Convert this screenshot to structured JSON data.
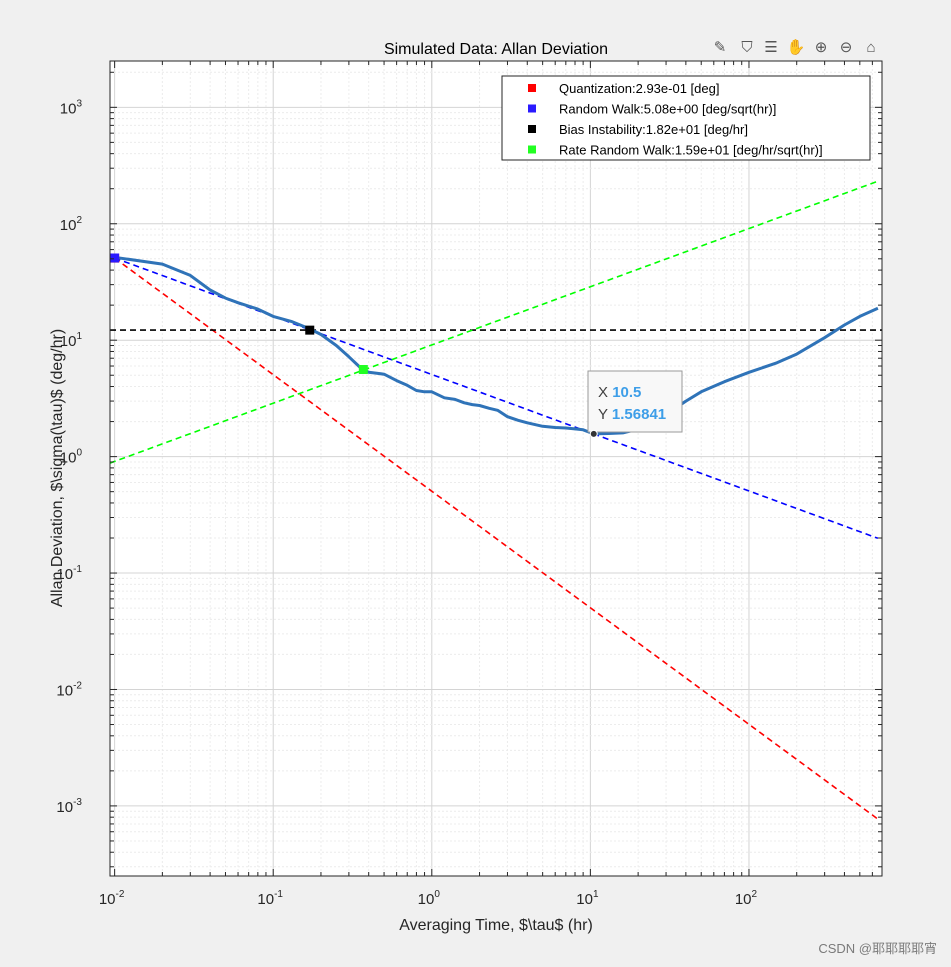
{
  "toolbar": {
    "icons": [
      "brush-icon",
      "data-tips-icon",
      "export-icon",
      "pan-icon",
      "zoom-in-icon",
      "zoom-out-icon",
      "home-icon"
    ]
  },
  "watermark": "CSDN @耶耶耶耶宵",
  "chart_data": {
    "type": "line",
    "title": "Simulated Data: Allan Deviation",
    "xlabel": "Averaging Time, $\\tau$ (hr)",
    "ylabel": "Allan Deviation, $\\sigma(\\tau)$ (deg/hr)",
    "xscale": "log",
    "yscale": "log",
    "xlim": [
      0.00935,
      690
    ],
    "ylim": [
      0.00025,
      2500
    ],
    "grid": true,
    "legend_position": "top-right",
    "x_ticks": [
      {
        "base": "10",
        "exp": "-2",
        "value": 0.01
      },
      {
        "base": "10",
        "exp": "-1",
        "value": 0.1
      },
      {
        "base": "10",
        "exp": "0",
        "value": 1
      },
      {
        "base": "10",
        "exp": "1",
        "value": 10
      },
      {
        "base": "10",
        "exp": "2",
        "value": 100
      }
    ],
    "y_ticks": [
      {
        "base": "10",
        "exp": "-3",
        "value": 0.001
      },
      {
        "base": "10",
        "exp": "-2",
        "value": 0.01
      },
      {
        "base": "10",
        "exp": "-1",
        "value": 0.1
      },
      {
        "base": "10",
        "exp": "0",
        "value": 1
      },
      {
        "base": "10",
        "exp": "1",
        "value": 10
      },
      {
        "base": "10",
        "exp": "2",
        "value": 100
      },
      {
        "base": "10",
        "exp": "3",
        "value": 1000
      }
    ],
    "series": [
      {
        "name": "Allan Deviation",
        "color": "#2f73b8",
        "style": "solid",
        "x": [
          0.01,
          0.02,
          0.03,
          0.04,
          0.05,
          0.06,
          0.08,
          0.1,
          0.13,
          0.17,
          0.2,
          0.25,
          0.3,
          0.36,
          0.4,
          0.45,
          0.5,
          0.6,
          0.7,
          0.8,
          0.9,
          1.0,
          1.2,
          1.4,
          1.6,
          1.8,
          2.0,
          2.3,
          2.6,
          3.0,
          3.5,
          4,
          5,
          6,
          7,
          8,
          9,
          10.5,
          13,
          16,
          20,
          25,
          30,
          40,
          50,
          70,
          100,
          150,
          200,
          300,
          400,
          500,
          650
        ],
        "y": [
          51.5,
          45,
          36,
          27,
          23,
          21,
          18.5,
          16,
          14.5,
          12.5,
          11.2,
          9.0,
          7.2,
          5.7,
          5.3,
          5.2,
          5.1,
          4.5,
          4.1,
          3.7,
          3.6,
          3.6,
          3.2,
          3.1,
          2.9,
          2.8,
          2.75,
          2.6,
          2.5,
          2.2,
          2.05,
          1.95,
          1.82,
          1.78,
          1.76,
          1.73,
          1.7,
          1.568,
          1.58,
          1.6,
          1.72,
          2.0,
          2.3,
          3.0,
          3.6,
          4.4,
          5.3,
          6.4,
          7.6,
          10.5,
          13.5,
          16,
          18.8
        ]
      },
      {
        "name": "Quantization:2.93e-01 [deg]",
        "color": "#ff0000",
        "style": "dashed",
        "x": [
          0.01,
          650
        ],
        "y": [
          50.7,
          0.00077
        ]
      },
      {
        "name": "Random Walk:5.08e+00 [deg/sqrt(hr)]",
        "color": "#0000ff",
        "style": "dashed",
        "x": [
          0.01,
          650
        ],
        "y": [
          50.8,
          0.199
        ]
      },
      {
        "name": "Bias Instability:1.82e+01 [deg/hr]",
        "color": "#000000",
        "style": "dashed",
        "x": [
          0.00935,
          690
        ],
        "y": [
          12.2,
          12.2
        ]
      },
      {
        "name": "Rate Random Walk:1.59e+01 [deg/hr/sqrt(hr)]",
        "color": "#00ff00",
        "style": "dashed",
        "x": [
          0.00935,
          650
        ],
        "y": [
          0.88,
          232
        ]
      }
    ],
    "markers": [
      {
        "x": 0.01,
        "y": 50.7,
        "color": "#ff0000"
      },
      {
        "x": 0.01,
        "y": 50.8,
        "color": "#2a1aff"
      },
      {
        "x": 0.17,
        "y": 12.2,
        "color": "#000000"
      },
      {
        "x": 0.37,
        "y": 5.6,
        "color": "#22ff22"
      }
    ],
    "legend": [
      {
        "label": "Quantization:2.93e-01 [deg]",
        "color": "#ff0000"
      },
      {
        "label": "Random Walk:5.08e+00 [deg/sqrt(hr)]",
        "color": "#2a1aff"
      },
      {
        "label": "Bias Instability:1.82e+01 [deg/hr]",
        "color": "#000000"
      },
      {
        "label": "Rate Random Walk:1.59e+01 [deg/hr/sqrt(hr)]",
        "color": "#22ff22"
      }
    ],
    "datatip": {
      "x_label": "X",
      "x_value": "10.5",
      "y_label": "Y",
      "y_value": "1.56841",
      "x": 10.5,
      "y": 1.56841,
      "value_color": "#3d9ee8"
    }
  }
}
